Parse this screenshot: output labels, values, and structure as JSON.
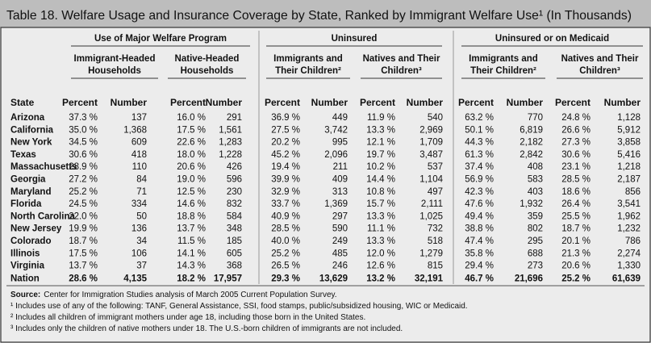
{
  "title": "Table 18. Welfare Usage and Insurance Coverage by State, Ranked by Immigrant Welfare Use¹  (In Thousands)",
  "group_headers": [
    "Use of Major Welfare Program",
    "Uninsured",
    "Uninsured or on Medicaid"
  ],
  "sub_headers": [
    [
      "Immigrant-Headed",
      "Households"
    ],
    [
      "Native-Headed",
      "Households"
    ],
    [
      "Immigrants and",
      "Their Children²"
    ],
    [
      "Natives and Their",
      "Children³"
    ],
    [
      "Immigrants and",
      "Their Children²"
    ],
    [
      "Natives and Their",
      "Children³"
    ]
  ],
  "column_headers": [
    "State",
    "Percent",
    "Number",
    "Percent",
    "Number",
    "Percent",
    "Number",
    "Percent",
    "Number",
    "Percent",
    "Number",
    "Percent",
    "Number"
  ],
  "rows": [
    [
      "Arizona",
      "37.3 %",
      "137",
      "16.0 %",
      "291",
      "36.9 %",
      "449",
      "11.9 %",
      "540",
      "63.2 %",
      "770",
      "24.8 %",
      "1,128"
    ],
    [
      "California",
      "35.0 %",
      "1,368",
      "17.5 %",
      "1,561",
      "27.5 %",
      "3,742",
      "13.3 %",
      "2,969",
      "50.1 %",
      "6,819",
      "26.6 %",
      "5,912"
    ],
    [
      "New York",
      "34.5 %",
      "609",
      "22.6 %",
      "1,283",
      "20.2 %",
      "995",
      "12.1 %",
      "1,709",
      "44.3 %",
      "2,182",
      "27.3 %",
      "3,858"
    ],
    [
      "Texas",
      "30.6 %",
      "418",
      "18.0 %",
      "1,228",
      "45.2 %",
      "2,096",
      "19.7 %",
      "3,487",
      "61.3 %",
      "2,842",
      "30.6 %",
      "5,416"
    ],
    [
      "Massachusetts",
      "28.9 %",
      "110",
      "20.6 %",
      "426",
      "19.4 %",
      "211",
      "10.2 %",
      "537",
      "37.4 %",
      "408",
      "23.1 %",
      "1,218"
    ],
    [
      "Georgia",
      "27.2 %",
      "84",
      "19.0 %",
      "596",
      "39.9 %",
      "409",
      "14.4 %",
      "1,104",
      "56.9 %",
      "583",
      "28.5 %",
      "2,187"
    ],
    [
      "Maryland",
      "25.2 %",
      "71",
      "12.5 %",
      "230",
      "32.9 %",
      "313",
      "10.8 %",
      "497",
      "42.3 %",
      "403",
      "18.6 %",
      "856"
    ],
    [
      "Florida",
      "24.5 %",
      "334",
      "14.6 %",
      "832",
      "33.7 %",
      "1,369",
      "15.7 %",
      "2,111",
      "47.6 %",
      "1,932",
      "26.4 %",
      "3,541"
    ],
    [
      "North Carolina",
      "22.0 %",
      "50",
      "18.8 %",
      "584",
      "40.9 %",
      "297",
      "13.3 %",
      "1,025",
      "49.4 %",
      "359",
      "25.5 %",
      "1,962"
    ],
    [
      "New Jersey",
      "19.9 %",
      "136",
      "13.7 %",
      "348",
      "28.5 %",
      "590",
      "11.1 %",
      "732",
      "38.8 %",
      "802",
      "18.7 %",
      "1,232"
    ],
    [
      "Colorado",
      "18.7 %",
      "34",
      "11.5 %",
      "185",
      "40.0 %",
      "249",
      "13.3 %",
      "518",
      "47.4 %",
      "295",
      "20.1 %",
      "786"
    ],
    [
      "Illinois",
      "17.5 %",
      "106",
      "14.1 %",
      "605",
      "25.2 %",
      "485",
      "12.0 %",
      "1,279",
      "35.8 %",
      "688",
      "21.3 %",
      "2,274"
    ],
    [
      "Virginia",
      "13.7 %",
      "37",
      "14.3 %",
      "368",
      "26.5 %",
      "246",
      "12.6 %",
      "815",
      "29.4 %",
      "273",
      "20.6 %",
      "1,330"
    ],
    [
      "Nation",
      "28.6 %",
      "4,135",
      "18.2 %",
      "17,957",
      "29.3 %",
      "13,629",
      "13.2 %",
      "32,191",
      "46.7 %",
      "21,696",
      "25.2 %",
      "61,639"
    ]
  ],
  "source": {
    "label": "Source:",
    "text": "Center for Immigration Studies analysis of March 2005 Current Population Survey."
  },
  "footnotes": [
    "¹ Includes use of any of the following: TANF, General Assistance, SSI, food stamps, public/subsidized housing, WIC or Medicaid.",
    "² Includes all children of immigrant mothers under age 18, including those born in the United States.",
    "³ Includes only the children of native mothers under 18. The U.S.-born children of immigrants are not included."
  ]
}
